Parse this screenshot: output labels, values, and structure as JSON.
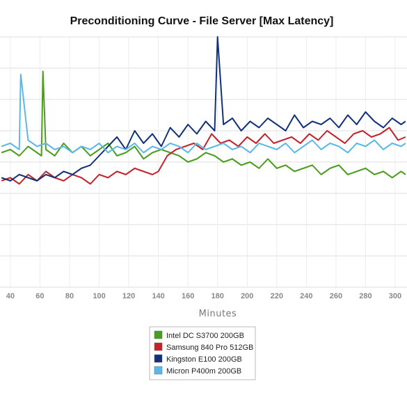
{
  "chart_data": {
    "type": "line",
    "title": "Preconditioning Curve - File Server [Max Latency]",
    "xlabel": "Minutes",
    "ylabel": "",
    "xlim": [
      33,
      308
    ],
    "ylim": [
      0,
      8
    ],
    "x_ticks": [
      40,
      60,
      80,
      100,
      120,
      140,
      160,
      180,
      200,
      220,
      240,
      260,
      280,
      300
    ],
    "grid": true,
    "legend_position": "bottom-center",
    "series": [
      {
        "name": "Intel DC S3700 200GB",
        "color": "#4a9e1e",
        "x": [
          34,
          40,
          46,
          52,
          58,
          61,
          62,
          64,
          70,
          76,
          82,
          88,
          94,
          100,
          106,
          112,
          118,
          124,
          130,
          136,
          142,
          148,
          154,
          160,
          166,
          172,
          178,
          184,
          190,
          196,
          202,
          208,
          214,
          220,
          226,
          232,
          238,
          244,
          250,
          256,
          262,
          268,
          274,
          280,
          286,
          292,
          298,
          304,
          307
        ],
        "y": [
          4.3,
          4.4,
          4.2,
          4.5,
          4.3,
          4.2,
          6.9,
          4.4,
          4.2,
          4.6,
          4.3,
          4.5,
          4.2,
          4.4,
          4.6,
          4.2,
          4.3,
          4.5,
          4.1,
          4.3,
          4.4,
          4.3,
          4.2,
          4.0,
          4.1,
          4.3,
          4.2,
          4.0,
          4.1,
          3.9,
          4.0,
          3.8,
          4.1,
          3.8,
          3.9,
          3.7,
          3.8,
          3.9,
          3.6,
          3.8,
          3.9,
          3.6,
          3.7,
          3.8,
          3.6,
          3.7,
          3.5,
          3.7,
          3.6
        ]
      },
      {
        "name": "Samsung 840 Pro 512GB",
        "color": "#c4222a",
        "x": [
          34,
          40,
          46,
          52,
          58,
          64,
          70,
          76,
          82,
          88,
          94,
          100,
          106,
          112,
          118,
          124,
          130,
          136,
          140,
          146,
          152,
          158,
          164,
          170,
          176,
          182,
          188,
          194,
          200,
          206,
          212,
          218,
          224,
          230,
          236,
          242,
          248,
          254,
          260,
          266,
          272,
          278,
          284,
          290,
          296,
          302,
          307
        ],
        "y": [
          3.4,
          3.5,
          3.3,
          3.6,
          3.4,
          3.7,
          3.5,
          3.4,
          3.6,
          3.5,
          3.3,
          3.6,
          3.5,
          3.7,
          3.6,
          3.8,
          3.7,
          3.6,
          3.7,
          4.2,
          4.4,
          4.5,
          4.6,
          4.4,
          4.9,
          4.6,
          4.7,
          4.5,
          4.8,
          4.6,
          4.9,
          4.6,
          4.7,
          4.8,
          4.6,
          4.9,
          4.7,
          5.0,
          4.8,
          4.6,
          4.9,
          5.0,
          4.8,
          4.9,
          5.1,
          4.7,
          4.8
        ]
      },
      {
        "name": "Kingston E100 200GB",
        "color": "#13317a",
        "x": [
          34,
          40,
          46,
          52,
          58,
          64,
          70,
          76,
          82,
          88,
          94,
          100,
          106,
          112,
          118,
          124,
          130,
          136,
          142,
          148,
          154,
          160,
          166,
          172,
          178,
          180,
          184,
          190,
          196,
          202,
          208,
          214,
          220,
          226,
          232,
          238,
          244,
          250,
          256,
          262,
          268,
          274,
          280,
          286,
          292,
          298,
          304,
          307
        ],
        "y": [
          3.5,
          3.4,
          3.6,
          3.5,
          3.4,
          3.6,
          3.5,
          3.7,
          3.6,
          3.8,
          3.9,
          4.2,
          4.5,
          4.8,
          4.4,
          5.0,
          4.6,
          4.9,
          4.5,
          5.1,
          4.8,
          5.2,
          4.9,
          5.3,
          5.0,
          8.0,
          5.2,
          5.4,
          5.0,
          5.3,
          5.1,
          5.4,
          5.2,
          5.0,
          5.5,
          5.1,
          5.3,
          5.2,
          5.4,
          5.1,
          5.5,
          5.2,
          5.6,
          5.3,
          5.1,
          5.4,
          5.2,
          5.3
        ]
      },
      {
        "name": "Micron P400m 200GB",
        "color": "#5bb8e8",
        "x": [
          34,
          40,
          46,
          47,
          52,
          58,
          64,
          70,
          76,
          82,
          88,
          94,
          100,
          106,
          112,
          118,
          124,
          130,
          136,
          142,
          148,
          154,
          160,
          166,
          172,
          178,
          184,
          190,
          196,
          202,
          208,
          214,
          220,
          226,
          232,
          238,
          244,
          250,
          256,
          262,
          268,
          274,
          280,
          286,
          292,
          298,
          304,
          307
        ],
        "y": [
          4.5,
          4.6,
          4.4,
          6.8,
          4.7,
          4.5,
          4.6,
          4.4,
          4.5,
          4.3,
          4.5,
          4.4,
          4.6,
          4.3,
          4.5,
          4.4,
          4.6,
          4.3,
          4.5,
          4.4,
          4.6,
          4.5,
          4.3,
          4.6,
          4.4,
          4.5,
          4.6,
          4.4,
          4.5,
          4.3,
          4.6,
          4.5,
          4.4,
          4.6,
          4.3,
          4.5,
          4.7,
          4.4,
          4.6,
          4.5,
          4.3,
          4.6,
          4.5,
          4.7,
          4.4,
          4.6,
          4.5,
          4.6
        ]
      }
    ]
  }
}
